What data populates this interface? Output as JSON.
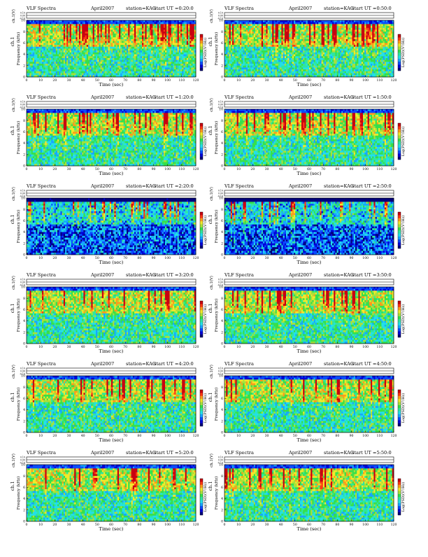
{
  "page_title": "VLF Spectra — KAG April 2007",
  "colors": {
    "background": "#ffffff",
    "colormap": [
      "#00007a",
      "#0000d6",
      "#0a4cff",
      "#16a6ff",
      "#22e0e8",
      "#2ee6a0",
      "#36e04a",
      "#a8e03a",
      "#f2e82a",
      "#ff9a1a",
      "#ff3a12",
      "#c80010"
    ]
  },
  "chart_data": [
    {
      "type": "heatmap",
      "title": "VLF Spectra",
      "date": "April2007",
      "station": "station=KAG",
      "start": "start UT =0:20:0",
      "top_ylabel": "ch.1(V)",
      "top_ticks": [
        "0.10",
        "0.00",
        "-0.10"
      ],
      "ylabel": "Frequency (kHz)",
      "ylabel2": "ch.1",
      "yticks": [
        "0",
        "2",
        "4",
        "6",
        "8",
        "10"
      ],
      "ylim": [
        0,
        10
      ],
      "xlabel": "Time (sec)",
      "xticks": [
        "0",
        "10",
        "20",
        "30",
        "40",
        "50",
        "60",
        "70",
        "80",
        "90",
        "100",
        "110",
        "120"
      ],
      "xlim": [
        0,
        120
      ],
      "colorbar_label": "Log(PSD)(V²/Hz)",
      "colorbar_ticks": [
        "",
        "",
        "",
        "",
        "",
        ""
      ]
    },
    {
      "type": "heatmap",
      "title": "VLF Spectra",
      "date": "April2007",
      "station": "station=KAG",
      "start": "start UT =0:50:0",
      "top_ylabel": "ch.1(V)",
      "top_ticks": [
        "0.10",
        "0.00",
        "-0.10"
      ],
      "ylabel": "Frequency (kHz)",
      "ylabel2": "ch.1",
      "yticks": [
        "0",
        "2",
        "4",
        "6",
        "8",
        "10"
      ],
      "ylim": [
        0,
        10
      ],
      "xlabel": "Time (sec)",
      "xticks": [
        "0",
        "10",
        "20",
        "30",
        "40",
        "50",
        "60",
        "70",
        "80",
        "90",
        "100",
        "110",
        "120"
      ],
      "xlim": [
        0,
        120
      ],
      "colorbar_label": "Log(PSD)(V²/Hz)",
      "colorbar_ticks": [
        "",
        "",
        "",
        "",
        "",
        ""
      ]
    },
    {
      "type": "heatmap",
      "title": "VLF Spectra",
      "date": "April2007",
      "station": "station=KAG",
      "start": "start UT =1:20:0",
      "top_ylabel": "ch.1(V)",
      "top_ticks": [
        "0.10",
        "0.00",
        "-0.10"
      ],
      "ylabel": "Frequency (kHz)",
      "ylabel2": "ch.1",
      "yticks": [
        "0",
        "2",
        "4",
        "6",
        "8",
        "10"
      ],
      "ylim": [
        0,
        10
      ],
      "xlabel": "Time (sec)",
      "xticks": [
        "0",
        "10",
        "20",
        "30",
        "40",
        "50",
        "60",
        "70",
        "80",
        "90",
        "100",
        "110",
        "120"
      ],
      "xlim": [
        0,
        120
      ],
      "colorbar_label": "Log(PSD)(V²/Hz)",
      "colorbar_ticks": [
        "",
        "",
        "",
        "",
        "",
        ""
      ]
    },
    {
      "type": "heatmap",
      "title": "VLF Spectra",
      "date": "April2007",
      "station": "station=KAG",
      "start": "start UT =1:50:0",
      "top_ylabel": "ch.1(V)",
      "top_ticks": [
        "0.10",
        "0.00",
        "-0.10"
      ],
      "ylabel": "Frequency (kHz)",
      "ylabel2": "ch.1",
      "yticks": [
        "0",
        "2",
        "4",
        "6",
        "8",
        "10"
      ],
      "ylim": [
        0,
        10
      ],
      "xlabel": "Time (sec)",
      "xticks": [
        "0",
        "10",
        "20",
        "30",
        "40",
        "50",
        "60",
        "70",
        "80",
        "90",
        "100",
        "110",
        "120"
      ],
      "xlim": [
        0,
        120
      ],
      "colorbar_label": "Log(PSD)(V²/Hz)",
      "colorbar_ticks": [
        "",
        "",
        "",
        "",
        "",
        ""
      ]
    },
    {
      "type": "heatmap",
      "title": "VLF Spectra",
      "date": "April2007",
      "station": "station=KAG",
      "start": "start UT =2:20:0",
      "top_ylabel": "ch.1(V)",
      "top_ticks": [
        "0.10",
        "0.00",
        "-0.10"
      ],
      "ylabel": "Frequency (kHz)",
      "ylabel2": "ch.1",
      "yticks": [
        "0",
        "2",
        "4",
        "6",
        "8",
        "10"
      ],
      "ylim": [
        0,
        10
      ],
      "xlabel": "Time (sec)",
      "xticks": [
        "0",
        "10",
        "20",
        "30",
        "40",
        "50",
        "60",
        "70",
        "80",
        "90",
        "100",
        "110",
        "120"
      ],
      "xlim": [
        0,
        120
      ],
      "colorbar_label": "Log(PSD)(V²/Hz)",
      "colorbar_ticks": [
        "",
        "",
        "",
        "",
        "",
        ""
      ]
    },
    {
      "type": "heatmap",
      "title": "VLF Spectra",
      "date": "April2007",
      "station": "station=KAG",
      "start": "start UT =2:50:0",
      "top_ylabel": "ch.1(V)",
      "top_ticks": [
        "0.10",
        "0.00",
        "-0.10"
      ],
      "ylabel": "Frequency (kHz)",
      "ylabel2": "ch.1",
      "yticks": [
        "0",
        "2",
        "4",
        "6",
        "8",
        "10"
      ],
      "ylim": [
        0,
        10
      ],
      "xlabel": "Time (sec)",
      "xticks": [
        "0",
        "10",
        "20",
        "30",
        "40",
        "50",
        "60",
        "70",
        "80",
        "90",
        "100",
        "110",
        "120"
      ],
      "xlim": [
        0,
        120
      ],
      "colorbar_label": "Log(PSD)(V²/Hz)",
      "colorbar_ticks": [
        "",
        "",
        "",
        "",
        "",
        ""
      ]
    },
    {
      "type": "heatmap",
      "title": "VLF Spectra",
      "date": "April2007",
      "station": "station=KAG",
      "start": "start UT =3:20:0",
      "top_ylabel": "ch.1(V)",
      "top_ticks": [
        "0.10",
        "0.00",
        "-0.10"
      ],
      "ylabel": "Frequency (kHz)",
      "ylabel2": "ch.1",
      "yticks": [
        "0",
        "2",
        "4",
        "6",
        "8",
        "10"
      ],
      "ylim": [
        0,
        10
      ],
      "xlabel": "Time (sec)",
      "xticks": [
        "0",
        "10",
        "20",
        "30",
        "40",
        "50",
        "60",
        "70",
        "80",
        "90",
        "100",
        "110",
        "120"
      ],
      "xlim": [
        0,
        120
      ],
      "colorbar_label": "Log(PSD)(V²/Hz)",
      "colorbar_ticks": [
        "",
        "",
        "",
        "",
        "",
        ""
      ]
    },
    {
      "type": "heatmap",
      "title": "VLF Spectra",
      "date": "April2007",
      "station": "station=KAG",
      "start": "start UT =3:50:0",
      "top_ylabel": "ch.1(V)",
      "top_ticks": [
        "0.10",
        "0.00",
        "-0.10"
      ],
      "ylabel": "Frequency (kHz)",
      "ylabel2": "ch.1",
      "yticks": [
        "0",
        "2",
        "4",
        "6",
        "8",
        "10"
      ],
      "ylim": [
        0,
        10
      ],
      "xlabel": "Time (sec)",
      "xticks": [
        "0",
        "10",
        "20",
        "30",
        "40",
        "50",
        "60",
        "70",
        "80",
        "90",
        "100",
        "110",
        "120"
      ],
      "xlim": [
        0,
        120
      ],
      "colorbar_label": "Log(PSD)(V²/Hz)",
      "colorbar_ticks": [
        "",
        "",
        "",
        "",
        "",
        ""
      ]
    },
    {
      "type": "heatmap",
      "title": "VLF Spectra",
      "date": "April2007",
      "station": "station=KAG",
      "start": "start UT =4:20:0",
      "top_ylabel": "ch.1(V)",
      "top_ticks": [
        "0.10",
        "0.00",
        "-0.10"
      ],
      "ylabel": "Frequency (kHz)",
      "ylabel2": "ch.1",
      "yticks": [
        "0",
        "2",
        "4",
        "6",
        "8",
        "10"
      ],
      "ylim": [
        0,
        10
      ],
      "xlabel": "Time (sec)",
      "xticks": [
        "0",
        "10",
        "20",
        "30",
        "40",
        "50",
        "60",
        "70",
        "80",
        "90",
        "100",
        "110",
        "120"
      ],
      "xlim": [
        0,
        120
      ],
      "colorbar_label": "Log(PSD)(V²/Hz)",
      "colorbar_ticks": [
        "",
        "",
        "",
        "",
        "",
        ""
      ]
    },
    {
      "type": "heatmap",
      "title": "VLF Spectra",
      "date": "April2007",
      "station": "station=KAG",
      "start": "start UT =4:50:0",
      "top_ylabel": "ch.1(V)",
      "top_ticks": [
        "0.10",
        "0.00",
        "-0.10"
      ],
      "ylabel": "Frequency (kHz)",
      "ylabel2": "ch.1",
      "yticks": [
        "0",
        "2",
        "4",
        "6",
        "8",
        "10"
      ],
      "ylim": [
        0,
        10
      ],
      "xlabel": "Time (sec)",
      "xticks": [
        "0",
        "10",
        "20",
        "30",
        "40",
        "50",
        "60",
        "70",
        "80",
        "90",
        "100",
        "110",
        "120"
      ],
      "xlim": [
        0,
        120
      ],
      "colorbar_label": "Log(PSD)(V²/Hz)",
      "colorbar_ticks": [
        "",
        "",
        "",
        "",
        "",
        ""
      ]
    },
    {
      "type": "heatmap",
      "title": "VLF Spectra",
      "date": "April2007",
      "station": "station=KAG",
      "start": "start UT =5:20:0",
      "top_ylabel": "ch.1(V)",
      "top_ticks": [
        "0.10",
        "0.00",
        "-0.10"
      ],
      "ylabel": "Frequency (kHz)",
      "ylabel2": "ch.1",
      "yticks": [
        "0",
        "2",
        "4",
        "6",
        "8",
        "10"
      ],
      "ylim": [
        0,
        10
      ],
      "xlabel": "Time (sec)",
      "xticks": [
        "0",
        "10",
        "20",
        "30",
        "40",
        "50",
        "60",
        "70",
        "80",
        "90",
        "100",
        "110",
        "120"
      ],
      "xlim": [
        0,
        120
      ],
      "colorbar_label": "Log(PSD)(V²/Hz)",
      "colorbar_ticks": [
        "",
        "",
        "",
        "",
        "",
        ""
      ]
    },
    {
      "type": "heatmap",
      "title": "VLF Spectra",
      "date": "April2007",
      "station": "station=KAG",
      "start": "start UT =5:50:0",
      "top_ylabel": "ch.1(V)",
      "top_ticks": [
        "0.10",
        "0.00",
        "-0.10"
      ],
      "ylabel": "Frequency (kHz)",
      "ylabel2": "ch.1",
      "yticks": [
        "0",
        "2",
        "4",
        "6",
        "8",
        "10"
      ],
      "ylim": [
        0,
        10
      ],
      "xlabel": "Time (sec)",
      "xticks": [
        "0",
        "10",
        "20",
        "30",
        "40",
        "50",
        "60",
        "70",
        "80",
        "90",
        "100",
        "110",
        "120"
      ],
      "xlim": [
        0,
        120
      ],
      "colorbar_label": "Log(PSD)(V²/Hz)",
      "colorbar_ticks": [
        "",
        "",
        "",
        "",
        "",
        ""
      ]
    }
  ]
}
